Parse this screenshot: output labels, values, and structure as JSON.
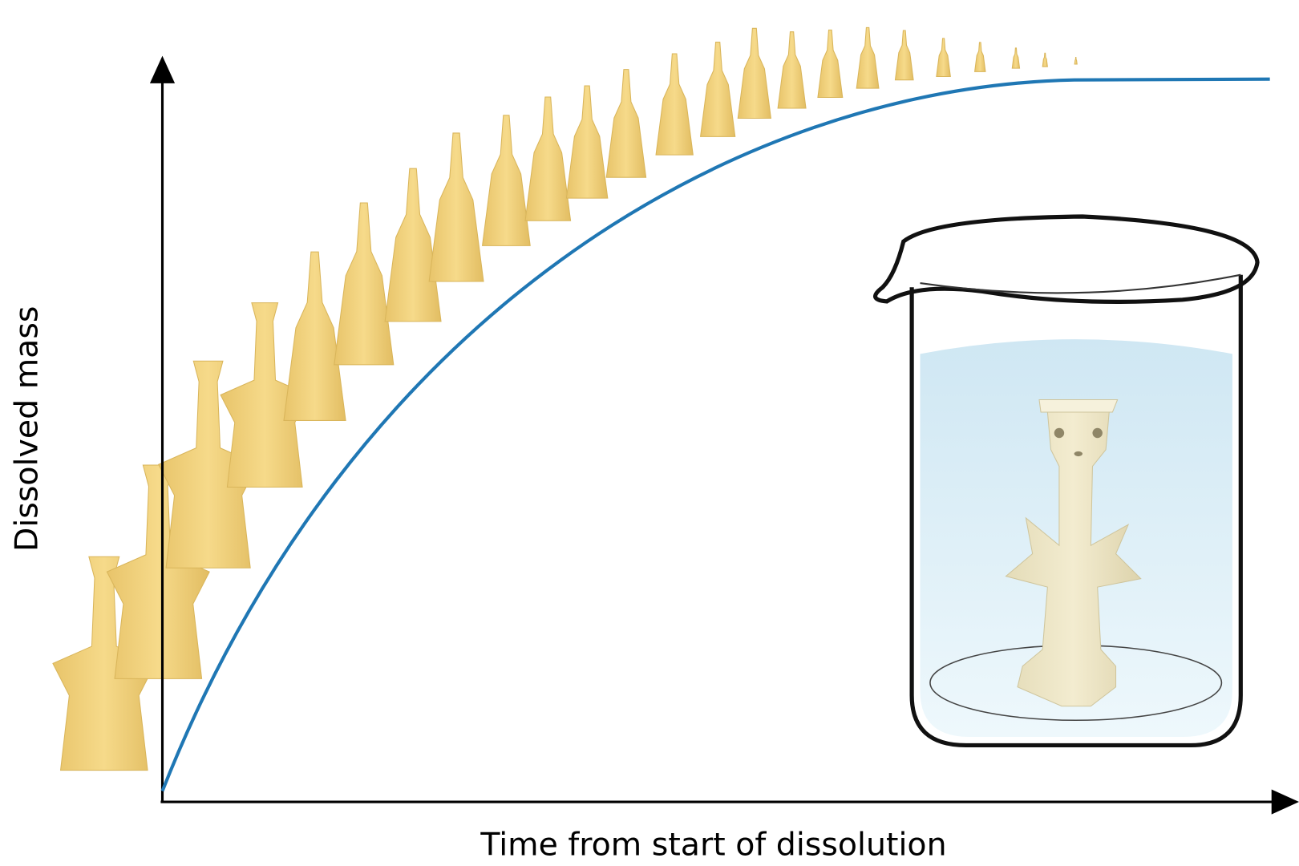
{
  "diagram": {
    "ylabel": "Dissolved mass",
    "xlabel": "Time from start of dissolution",
    "colors": {
      "curve": "#1f77b4",
      "tablet": "#f2d27c",
      "tablet_edge": "#d9b55a",
      "water": "#dff0f8",
      "beaker_outline": "#111111"
    },
    "curve_shape": "saturating rise to plateau",
    "tablet_stages": 25
  }
}
